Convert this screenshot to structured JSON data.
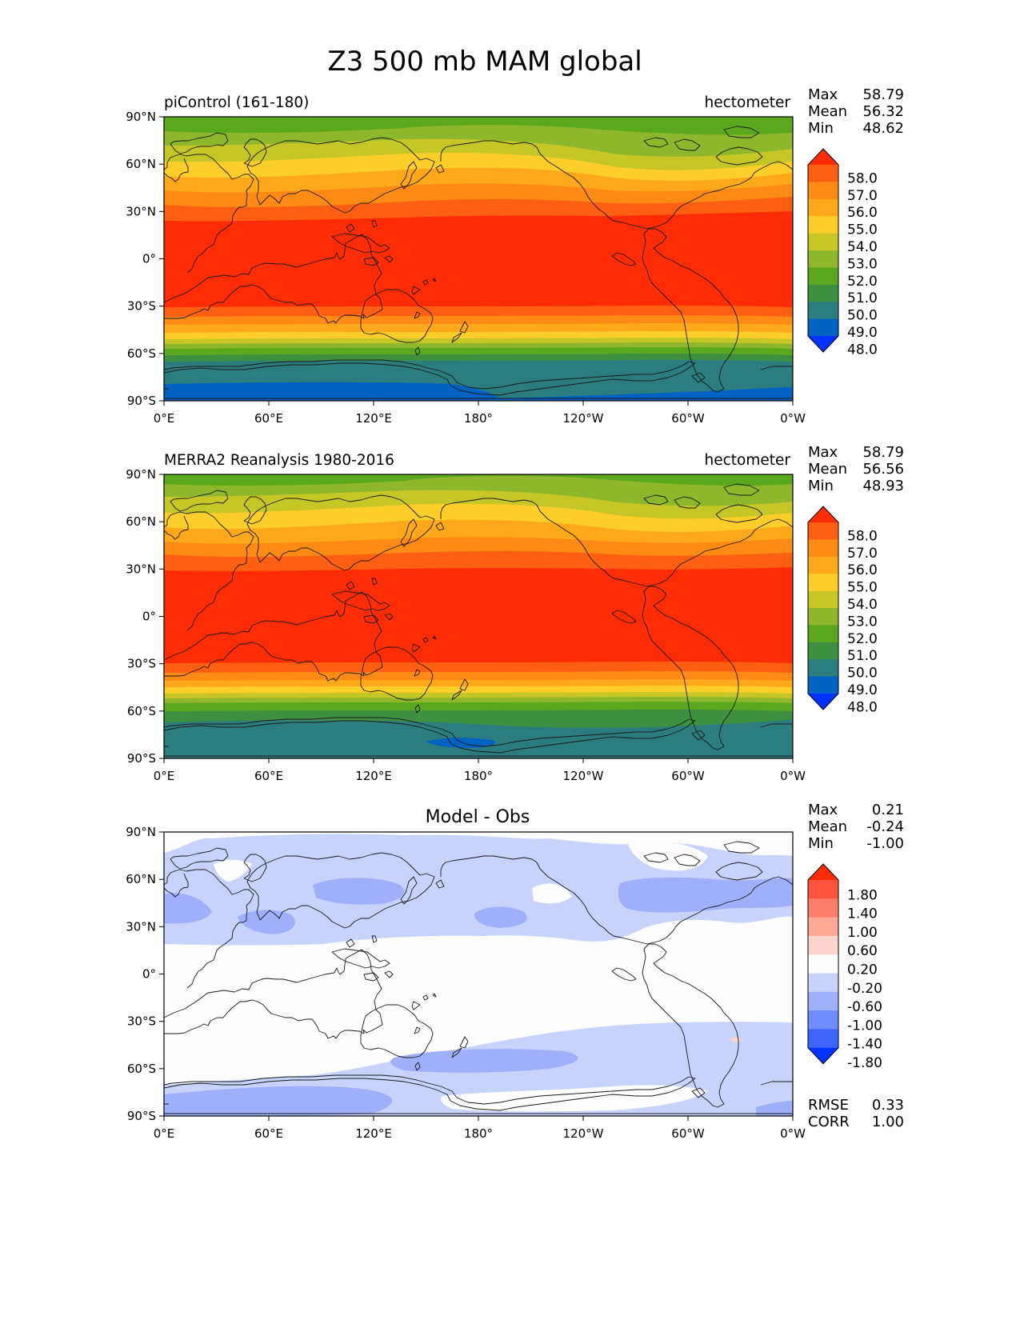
{
  "figure": {
    "title": "Z3 500 mb MAM global"
  },
  "axes": {
    "lat_ticks": [
      "90°N",
      "60°N",
      "30°N",
      "0°",
      "30°S",
      "60°S",
      "90°S"
    ],
    "lon_ticks": [
      "0°E",
      "60°E",
      "120°E",
      "180°",
      "120°W",
      "60°W",
      "0°W"
    ]
  },
  "colors": {
    "h_levels": [
      "#0032ff",
      "#0063c4",
      "#2b7d80",
      "#3d9040",
      "#5ba81e",
      "#8eb72b",
      "#c6c627",
      "#fdce2a",
      "#fea81a",
      "#ff8a15",
      "#ff5f10",
      "#ff2c06"
    ],
    "d_levels": [
      "#0032ff",
      "#3f65ff",
      "#6f8dff",
      "#9eb0fa",
      "#c8d3fb",
      "#fdfdfd",
      "#ffd4cc",
      "#ffa897",
      "#ff7e69",
      "#ff553e",
      "#ff2c06"
    ],
    "coast": "#1a1a1a"
  },
  "panels": [
    {
      "id": "model",
      "title_left": "piControl (161-180)",
      "title_right": "hectometer",
      "title_center": "",
      "stats": [
        {
          "label": "Max",
          "value": "58.79"
        },
        {
          "label": "Mean",
          "value": "56.32"
        },
        {
          "label": "Min",
          "value": "48.62"
        }
      ],
      "colorbar_labels": [
        "58.0",
        "57.0",
        "56.0",
        "55.0",
        "54.0",
        "53.0",
        "52.0",
        "51.0",
        "50.0",
        "49.0",
        "48.0"
      ],
      "footer_stats": []
    },
    {
      "id": "obs",
      "title_left": "MERRA2 Reanalysis 1980-2016",
      "title_right": "hectometer",
      "title_center": "",
      "stats": [
        {
          "label": "Max",
          "value": "58.79"
        },
        {
          "label": "Mean",
          "value": "56.56"
        },
        {
          "label": "Min",
          "value": "48.93"
        }
      ],
      "colorbar_labels": [
        "58.0",
        "57.0",
        "56.0",
        "55.0",
        "54.0",
        "53.0",
        "52.0",
        "51.0",
        "50.0",
        "49.0",
        "48.0"
      ],
      "footer_stats": []
    },
    {
      "id": "diff",
      "title_left": "",
      "title_right": "",
      "title_center": "Model - Obs",
      "stats": [
        {
          "label": "Max",
          "value": "0.21"
        },
        {
          "label": "Mean",
          "value": "-0.24"
        },
        {
          "label": "Min",
          "value": "-1.00"
        }
      ],
      "colorbar_labels": [
        "1.80",
        "1.40",
        "1.00",
        "0.60",
        "0.20",
        "-0.20",
        "-0.60",
        "-1.00",
        "-1.40",
        "-1.80"
      ],
      "footer_stats": [
        {
          "label": "RMSE",
          "value": "0.33"
        },
        {
          "label": "CORR",
          "value": "1.00"
        }
      ]
    }
  ]
}
